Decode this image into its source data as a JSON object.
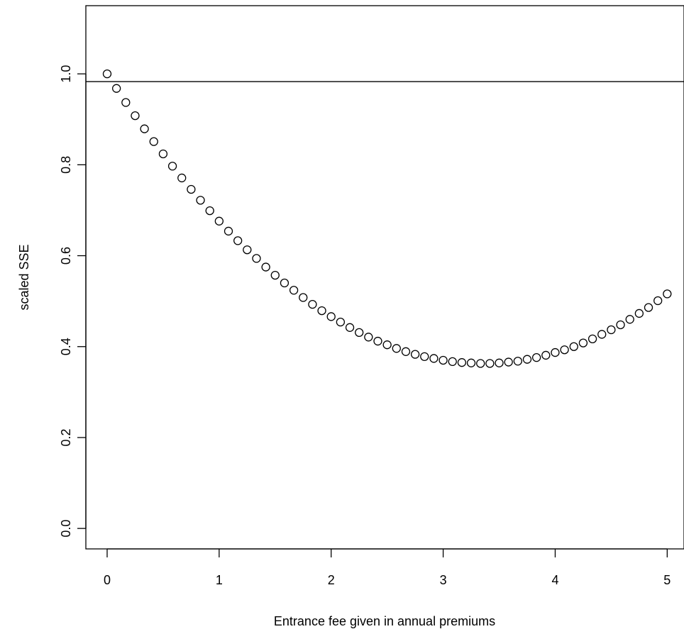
{
  "chart_data": {
    "type": "scatter",
    "title": "",
    "xlabel": "Entrance fee given in annual premiums",
    "ylabel": "scaled SSE",
    "xlim": [
      -0.19,
      5.15
    ],
    "ylim": [
      -0.045,
      1.15
    ],
    "xticks": [
      0,
      1,
      2,
      3,
      4,
      5
    ],
    "xtick_labels": [
      "0",
      "1",
      "2",
      "3",
      "4",
      "5"
    ],
    "yticks": [
      0.0,
      0.2,
      0.4,
      0.6,
      0.8,
      1.0
    ],
    "ytick_labels": [
      "0.0",
      "0.2",
      "0.4",
      "0.6",
      "0.8",
      "1.0"
    ],
    "grid": false,
    "legend": "none",
    "hline": 0.983,
    "marker": "open-circle",
    "color": "#000000",
    "x": [
      0,
      0.0833,
      0.1667,
      0.25,
      0.3333,
      0.4167,
      0.5,
      0.5833,
      0.6667,
      0.75,
      0.8333,
      0.9167,
      1,
      1.0833,
      1.1667,
      1.25,
      1.3333,
      1.4167,
      1.5,
      1.5833,
      1.6667,
      1.75,
      1.8333,
      1.9167,
      2,
      2.0833,
      2.1667,
      2.25,
      2.3333,
      2.4167,
      2.5,
      2.5833,
      2.6667,
      2.75,
      2.8333,
      2.9167,
      3,
      3.0833,
      3.1667,
      3.25,
      3.3333,
      3.4167,
      3.5,
      3.5833,
      3.6667,
      3.75,
      3.8333,
      3.9167,
      4,
      4.0833,
      4.1667,
      4.25,
      4.3333,
      4.4167,
      4.5,
      4.5833,
      4.6667,
      4.75,
      4.8333,
      4.9167,
      5
    ],
    "y": [
      1.0,
      0.968,
      0.937,
      0.908,
      0.879,
      0.851,
      0.824,
      0.797,
      0.771,
      0.746,
      0.722,
      0.699,
      0.676,
      0.654,
      0.633,
      0.613,
      0.594,
      0.575,
      0.557,
      0.54,
      0.524,
      0.508,
      0.493,
      0.479,
      0.466,
      0.454,
      0.442,
      0.431,
      0.421,
      0.412,
      0.404,
      0.396,
      0.389,
      0.383,
      0.378,
      0.374,
      0.37,
      0.367,
      0.365,
      0.364,
      0.363,
      0.363,
      0.364,
      0.366,
      0.368,
      0.372,
      0.376,
      0.381,
      0.387,
      0.393,
      0.4,
      0.408,
      0.417,
      0.427,
      0.437,
      0.448,
      0.46,
      0.473,
      0.486,
      0.501,
      0.516
    ]
  }
}
